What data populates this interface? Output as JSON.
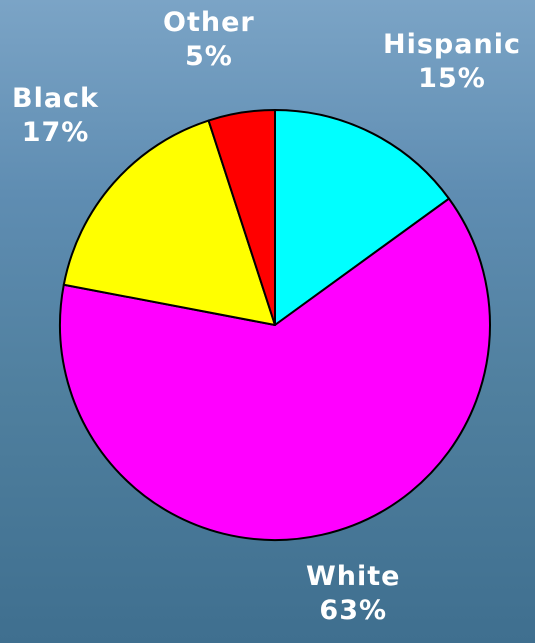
{
  "chart_data": {
    "type": "pie",
    "title": "",
    "slices": [
      {
        "label": "Hispanic",
        "value": 15,
        "value_label": "15%",
        "color": "#00ffff"
      },
      {
        "label": "White",
        "value": 63,
        "value_label": "63%",
        "color": "#ff00ff"
      },
      {
        "label": "Black",
        "value": 17,
        "value_label": "17%",
        "color": "#ffff00"
      },
      {
        "label": "Other",
        "value": 5,
        "value_label": "5%",
        "color": "#ff0000"
      }
    ],
    "start_angle_deg": 0,
    "direction": "clockwise",
    "legend": "none"
  }
}
